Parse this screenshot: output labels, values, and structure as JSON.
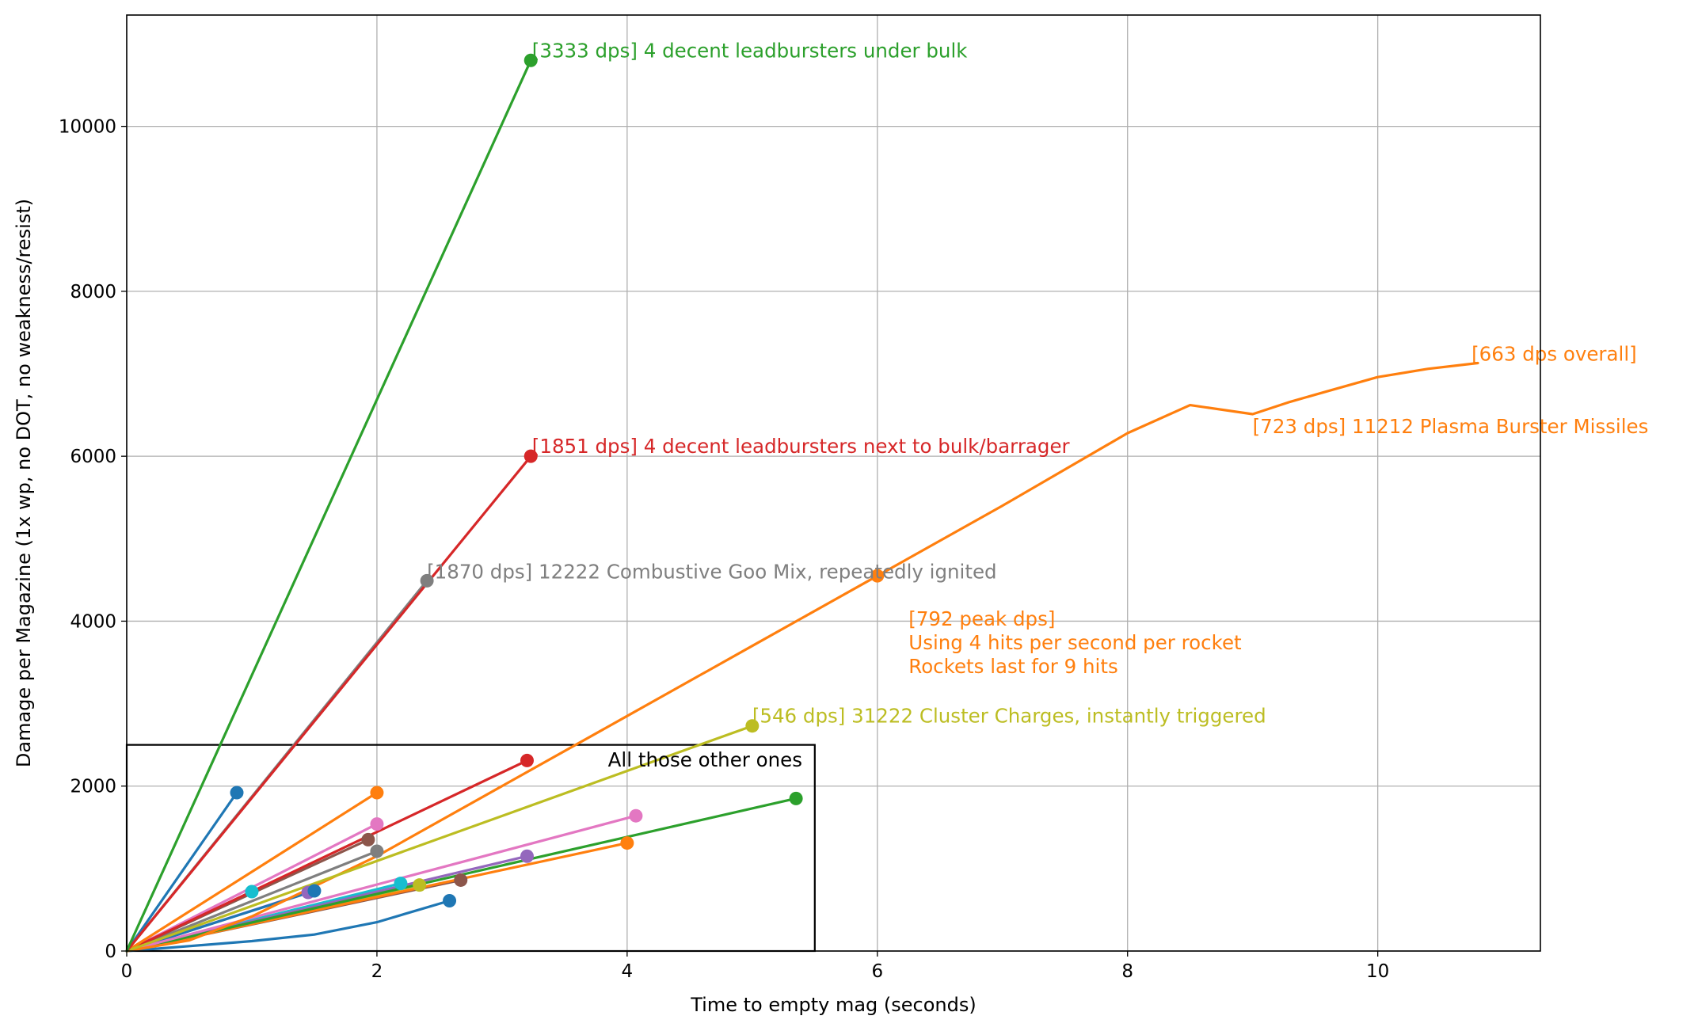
{
  "chart_data": {
    "type": "line",
    "title": "",
    "xlabel": "Time to empty mag (seconds)",
    "ylabel": "Damage per Magazine (1x wp, no DOT, no weakness/resist)",
    "xlim": [
      0,
      11.3
    ],
    "ylim": [
      0,
      11350
    ],
    "xticks": [
      0,
      2,
      4,
      6,
      8,
      10
    ],
    "yticks": [
      0,
      2000,
      4000,
      6000,
      8000,
      10000
    ],
    "grid": true,
    "legend": "none",
    "series": [
      {
        "color": "#2ca02c",
        "points": [
          [
            0,
            0
          ],
          [
            3.23,
            10800
          ]
        ]
      },
      {
        "color": "#d62728",
        "points": [
          [
            0,
            0
          ],
          [
            3.23,
            6000
          ]
        ]
      },
      {
        "color": "#7f7f7f",
        "points": [
          [
            0,
            0
          ],
          [
            2.4,
            4490
          ]
        ]
      },
      {
        "color": "#bcbd22",
        "points": [
          [
            0,
            0
          ],
          [
            5.0,
            2730
          ]
        ]
      },
      {
        "color": "#ff7f0e",
        "marker_index": 7,
        "points": [
          [
            0,
            0
          ],
          [
            0.5,
            130
          ],
          [
            1,
            420
          ],
          [
            2,
            1150
          ],
          [
            3,
            2000
          ],
          [
            4,
            2850
          ],
          [
            5,
            3700
          ],
          [
            6,
            4550
          ],
          [
            7,
            5400
          ],
          [
            8,
            6280
          ],
          [
            8.5,
            6620
          ],
          [
            9,
            6510
          ],
          [
            9.3,
            6660
          ],
          [
            9.6,
            6790
          ],
          [
            10,
            6960
          ],
          [
            10.4,
            7060
          ],
          [
            10.8,
            7130
          ]
        ]
      },
      {
        "color": "#1f77b4",
        "points": [
          [
            0,
            0
          ],
          [
            0.88,
            1920
          ]
        ]
      },
      {
        "color": "#ff7f0e",
        "points": [
          [
            0,
            0
          ],
          [
            2.0,
            1920
          ]
        ]
      },
      {
        "color": "#d62728",
        "points": [
          [
            0,
            0
          ],
          [
            3.2,
            2310
          ]
        ]
      },
      {
        "color": "#e377c2",
        "points": [
          [
            0,
            0
          ],
          [
            2.0,
            1540
          ]
        ]
      },
      {
        "color": "#8c564b",
        "points": [
          [
            0,
            0
          ],
          [
            1.93,
            1350
          ]
        ]
      },
      {
        "color": "#7f7f7f",
        "points": [
          [
            0,
            0
          ],
          [
            2.0,
            1210
          ]
        ]
      },
      {
        "color": "#e377c2",
        "points": [
          [
            0,
            0
          ],
          [
            4.07,
            1640
          ]
        ]
      },
      {
        "color": "#2ca02c",
        "points": [
          [
            0,
            0
          ],
          [
            5.35,
            1850
          ]
        ]
      },
      {
        "color": "#ff7f0e",
        "points": [
          [
            0,
            0
          ],
          [
            4.0,
            1310
          ]
        ]
      },
      {
        "color": "#9467bd",
        "points": [
          [
            0,
            0
          ],
          [
            3.2,
            1150
          ]
        ]
      },
      {
        "color": "#8c564b",
        "points": [
          [
            0,
            0
          ],
          [
            2.67,
            860
          ]
        ]
      },
      {
        "color": "#17becf",
        "points": [
          [
            0,
            0
          ],
          [
            2.19,
            820
          ]
        ]
      },
      {
        "color": "#bcbd22",
        "points": [
          [
            0,
            0
          ],
          [
            2.34,
            800
          ]
        ]
      },
      {
        "color": "#1f77b4",
        "points": [
          [
            0,
            0
          ],
          [
            1.5,
            730
          ]
        ]
      },
      {
        "color": "#9467bd",
        "points": [
          [
            0,
            0
          ],
          [
            1.45,
            710
          ]
        ]
      },
      {
        "color": "#17becf",
        "points": [
          [
            0,
            0
          ],
          [
            1.0,
            720
          ]
        ]
      },
      {
        "color": "#1f77b4",
        "points": [
          [
            0,
            0
          ],
          [
            0.5,
            60
          ],
          [
            1.0,
            120
          ],
          [
            1.5,
            200
          ],
          [
            2.0,
            350
          ],
          [
            2.58,
            610
          ]
        ]
      }
    ],
    "annotations": [
      {
        "lines": [
          "[3333 dps] 4 decent leadbursters under bulk"
        ],
        "color": "#2ca02c",
        "x": 3.24,
        "y": 10800,
        "anchor": "bottom"
      },
      {
        "lines": [
          "[1851 dps] 4 decent leadbursters next to bulk/barrager"
        ],
        "color": "#d62728",
        "x": 3.24,
        "y": 6000,
        "anchor": "bottom"
      },
      {
        "lines": [
          "[1870 dps] 12222 Combustive Goo Mix, repeatedly ignited"
        ],
        "color": "#7f7f7f",
        "x": 2.4,
        "y": 4480,
        "anchor": "bottom"
      },
      {
        "lines": [
          "[792 peak dps]",
          "Using 4 hits per second per rocket",
          "Rockets last for 9 hits"
        ],
        "color": "#ff7f0e",
        "x": 6.25,
        "y": 4160,
        "anchor": "top"
      },
      {
        "lines": [
          "[546 dps] 31222 Cluster Charges, instantly triggered"
        ],
        "color": "#bcbd22",
        "x": 5.0,
        "y": 2730,
        "anchor": "bottom"
      },
      {
        "lines": [
          "[663 dps overall]"
        ],
        "color": "#ff7f0e",
        "x": 10.75,
        "y": 7120,
        "anchor": "bottom"
      },
      {
        "lines": [
          "[723 dps] 11212 Plasma Burster Missiles"
        ],
        "color": "#ff7f0e",
        "x": 9.0,
        "y": 6490,
        "anchor": "top"
      },
      {
        "lines": [
          "All those other ones"
        ],
        "color": "#000000",
        "x": 5.4,
        "y": 2450,
        "anchor": "top-right"
      }
    ],
    "box": {
      "x": [
        0,
        5.5
      ],
      "y": [
        0,
        2500
      ],
      "color": "#000000"
    }
  }
}
